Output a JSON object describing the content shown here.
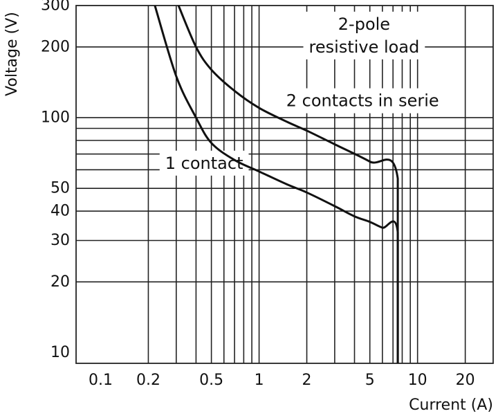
{
  "chart_data": {
    "type": "line",
    "title": "",
    "xlabel": "Current (A)",
    "ylabel": "Voltage (V)",
    "xscale": "log",
    "yscale": "log",
    "xlim": [
      0.07,
      30
    ],
    "ylim": [
      9,
      300
    ],
    "grid": true,
    "x_ticks": [
      {
        "value": 0.1,
        "label": "0.1"
      },
      {
        "value": 0.2,
        "label": "0.2"
      },
      {
        "value": 0.5,
        "label": "0.5"
      },
      {
        "value": 1,
        "label": "1"
      },
      {
        "value": 2,
        "label": "2"
      },
      {
        "value": 5,
        "label": "5"
      },
      {
        "value": 10,
        "label": "10"
      },
      {
        "value": 20,
        "label": "20"
      }
    ],
    "y_ticks": [
      {
        "value": 10,
        "label": "10"
      },
      {
        "value": 20,
        "label": "20"
      },
      {
        "value": 30,
        "label": "30"
      },
      {
        "value": 40,
        "label": "40"
      },
      {
        "value": 50,
        "label": "50"
      },
      {
        "value": 100,
        "label": "100"
      },
      {
        "value": 200,
        "label": "200"
      },
      {
        "value": 300,
        "label": "300"
      }
    ],
    "x_grid": [
      0.2,
      0.3,
      0.4,
      0.5,
      0.6,
      0.7,
      0.8,
      0.9,
      1,
      2,
      3,
      4,
      5,
      6,
      7,
      8,
      9,
      10,
      20
    ],
    "y_grid": [
      20,
      30,
      40,
      50,
      60,
      70,
      80,
      90,
      100,
      200
    ],
    "series": [
      {
        "name": "1 contact",
        "points": [
          [
            0.22,
            300
          ],
          [
            0.3,
            150
          ],
          [
            0.4,
            100
          ],
          [
            0.5,
            78
          ],
          [
            0.7,
            66
          ],
          [
            1,
            59
          ],
          [
            1.5,
            52
          ],
          [
            2,
            48
          ],
          [
            3,
            42
          ],
          [
            4,
            38
          ],
          [
            5,
            36
          ],
          [
            6,
            34
          ],
          [
            7.5,
            32.5
          ],
          [
            7.5,
            9
          ]
        ]
      },
      {
        "name": "2 contacts in serie",
        "points": [
          [
            0.31,
            300
          ],
          [
            0.4,
            200
          ],
          [
            0.5,
            160
          ],
          [
            0.7,
            130
          ],
          [
            1,
            110
          ],
          [
            1.5,
            96
          ],
          [
            2,
            88
          ],
          [
            3,
            77
          ],
          [
            5,
            65
          ],
          [
            7.5,
            55
          ],
          [
            7.5,
            9
          ]
        ]
      }
    ],
    "annotations": [
      {
        "text": "2-pole",
        "x": 4.6,
        "y": 250
      },
      {
        "text": "resistive load",
        "x": 4.6,
        "y": 200
      },
      {
        "text": "2 contacts in serie",
        "x": 4.5,
        "y": 118
      },
      {
        "text": "1 contact",
        "x": 0.45,
        "y": 64
      }
    ]
  }
}
